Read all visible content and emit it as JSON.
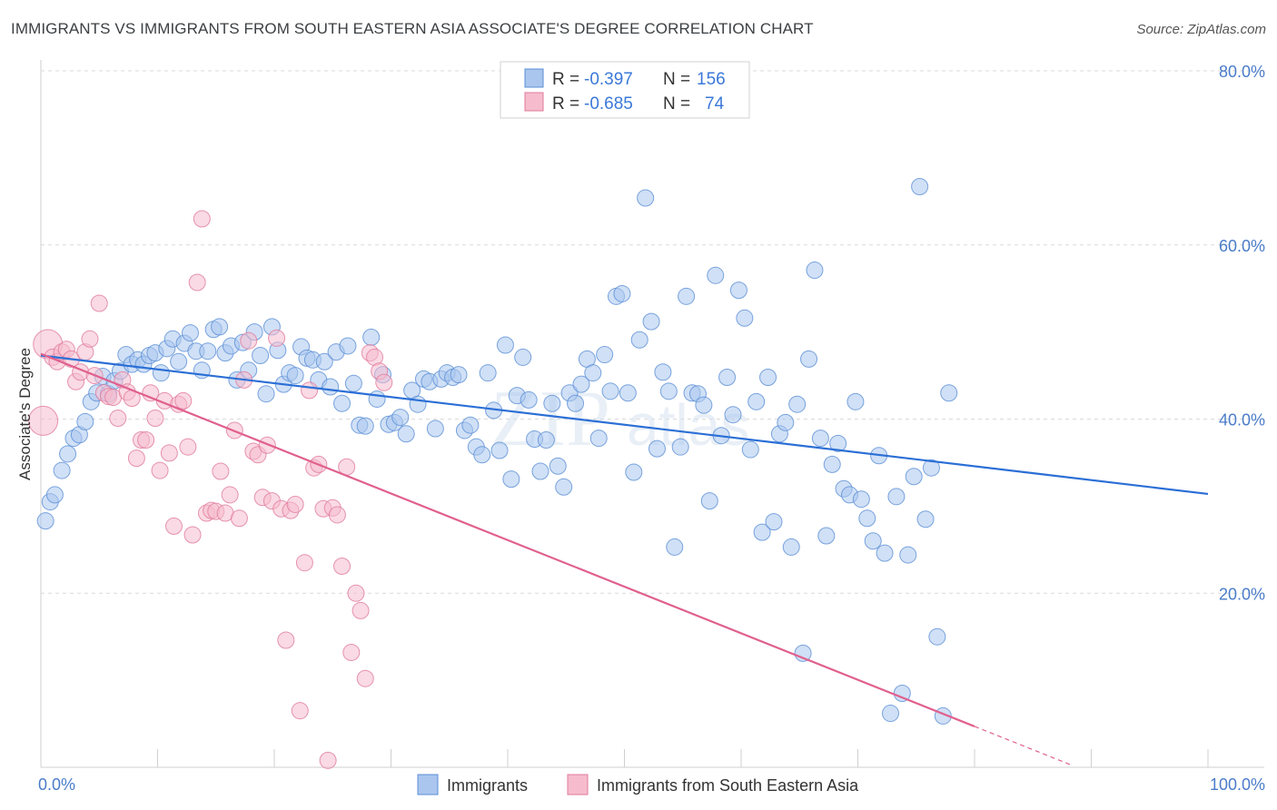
{
  "header": {
    "title": "IMMIGRANTS VS IMMIGRANTS FROM SOUTH EASTERN ASIA ASSOCIATE'S DEGREE CORRELATION CHART",
    "source": "Source: ZipAtlas.com"
  },
  "watermark": {
    "zip": "ZIP",
    "atlas": "atlas"
  },
  "legend": {
    "r_label": "R =",
    "n_label": "N =",
    "series": [
      {
        "r": "-0.397",
        "n": "156"
      },
      {
        "r": "-0.685",
        "n": "74"
      }
    ]
  },
  "colors": {
    "blue_fill": "#aac6ee",
    "blue_stroke": "#5b8fd6",
    "blue_line": "#2b6fd6",
    "pink_fill": "#f6bccd",
    "pink_stroke": "#e07a9c",
    "pink_line": "#e0608e",
    "grid": "#d9d9d9"
  },
  "chart_data": {
    "type": "scatter",
    "title": "IMMIGRANTS VS IMMIGRANTS FROM SOUTH EASTERN ASIA ASSOCIATE'S DEGREE CORRELATION CHART",
    "xlabel": "",
    "ylabel": "Associate's Degree",
    "xlim": [
      0,
      100
    ],
    "ylim": [
      0,
      80
    ],
    "x_tick_labels": [
      "0.0%",
      "100.0%"
    ],
    "y_ticks": [
      20,
      40,
      60,
      80
    ],
    "y_tick_labels": [
      "20.0%",
      "40.0%",
      "60.0%",
      "80.0%"
    ],
    "grid": true,
    "legend_position": "bottom",
    "series": [
      {
        "name": "Immigrants",
        "color": "blue",
        "trend": {
          "x": [
            0,
            100
          ],
          "y": [
            47.3,
            31.4
          ]
        },
        "points": [
          [
            0.4,
            28.3
          ],
          [
            0.8,
            30.5
          ],
          [
            1.2,
            31.3
          ],
          [
            1.8,
            34.1
          ],
          [
            2.3,
            36.0
          ],
          [
            2.8,
            37.8
          ],
          [
            3.3,
            38.2
          ],
          [
            3.8,
            39.7
          ],
          [
            4.3,
            42.0
          ],
          [
            4.8,
            43.0
          ],
          [
            5.3,
            44.9
          ],
          [
            5.8,
            42.9
          ],
          [
            6.3,
            44.4
          ],
          [
            6.8,
            45.5
          ],
          [
            7.3,
            47.4
          ],
          [
            7.8,
            46.3
          ],
          [
            8.3,
            46.8
          ],
          [
            8.8,
            46.3
          ],
          [
            9.3,
            47.3
          ],
          [
            9.8,
            47.6
          ],
          [
            10.3,
            45.3
          ],
          [
            10.8,
            48.1
          ],
          [
            11.3,
            49.2
          ],
          [
            11.8,
            46.6
          ],
          [
            12.3,
            48.7
          ],
          [
            12.8,
            49.9
          ],
          [
            13.3,
            47.8
          ],
          [
            13.8,
            45.6
          ],
          [
            14.3,
            47.8
          ],
          [
            14.8,
            50.3
          ],
          [
            15.3,
            50.6
          ],
          [
            15.8,
            47.6
          ],
          [
            16.3,
            48.4
          ],
          [
            16.8,
            44.5
          ],
          [
            17.3,
            48.8
          ],
          [
            17.8,
            45.6
          ],
          [
            18.3,
            50.0
          ],
          [
            18.8,
            47.3
          ],
          [
            19.3,
            42.9
          ],
          [
            19.8,
            50.6
          ],
          [
            20.3,
            47.9
          ],
          [
            20.8,
            44.0
          ],
          [
            21.3,
            45.3
          ],
          [
            21.8,
            45.0
          ],
          [
            22.3,
            48.3
          ],
          [
            22.8,
            47.0
          ],
          [
            23.3,
            46.8
          ],
          [
            23.8,
            44.5
          ],
          [
            24.3,
            46.6
          ],
          [
            24.8,
            43.7
          ],
          [
            25.3,
            47.7
          ],
          [
            25.8,
            41.8
          ],
          [
            26.3,
            48.4
          ],
          [
            26.8,
            44.1
          ],
          [
            27.3,
            39.3
          ],
          [
            27.8,
            39.2
          ],
          [
            28.3,
            49.4
          ],
          [
            28.8,
            42.3
          ],
          [
            29.3,
            45.1
          ],
          [
            29.8,
            39.4
          ],
          [
            30.3,
            39.6
          ],
          [
            30.8,
            40.2
          ],
          [
            31.3,
            38.3
          ],
          [
            31.8,
            43.3
          ],
          [
            32.3,
            41.7
          ],
          [
            32.8,
            44.6
          ],
          [
            33.3,
            44.3
          ],
          [
            33.8,
            38.9
          ],
          [
            34.3,
            44.6
          ],
          [
            34.8,
            45.3
          ],
          [
            35.3,
            44.8
          ],
          [
            35.8,
            45.1
          ],
          [
            36.3,
            38.7
          ],
          [
            36.8,
            39.3
          ],
          [
            37.3,
            36.8
          ],
          [
            37.8,
            35.9
          ],
          [
            38.3,
            45.3
          ],
          [
            38.8,
            41.0
          ],
          [
            39.3,
            36.4
          ],
          [
            39.8,
            48.5
          ],
          [
            40.3,
            33.1
          ],
          [
            40.8,
            42.7
          ],
          [
            41.3,
            47.1
          ],
          [
            41.8,
            42.2
          ],
          [
            42.3,
            37.7
          ],
          [
            42.8,
            34.0
          ],
          [
            43.3,
            37.6
          ],
          [
            43.8,
            41.8
          ],
          [
            44.3,
            34.6
          ],
          [
            44.8,
            32.2
          ],
          [
            45.3,
            43.0
          ],
          [
            45.8,
            41.8
          ],
          [
            46.3,
            44.0
          ],
          [
            46.8,
            46.9
          ],
          [
            47.3,
            45.3
          ],
          [
            47.8,
            37.8
          ],
          [
            48.3,
            47.4
          ],
          [
            48.8,
            43.2
          ],
          [
            49.3,
            54.1
          ],
          [
            49.8,
            54.4
          ],
          [
            50.3,
            43.0
          ],
          [
            50.8,
            33.9
          ],
          [
            51.3,
            49.1
          ],
          [
            51.8,
            65.4
          ],
          [
            52.3,
            51.2
          ],
          [
            52.8,
            36.6
          ],
          [
            53.3,
            45.4
          ],
          [
            53.8,
            43.2
          ],
          [
            54.3,
            25.3
          ],
          [
            54.8,
            36.8
          ],
          [
            55.3,
            54.1
          ],
          [
            55.8,
            43.0
          ],
          [
            56.3,
            42.9
          ],
          [
            56.8,
            41.6
          ],
          [
            57.3,
            30.6
          ],
          [
            57.8,
            56.5
          ],
          [
            58.3,
            38.1
          ],
          [
            58.8,
            44.8
          ],
          [
            59.3,
            40.5
          ],
          [
            59.8,
            54.8
          ],
          [
            60.3,
            51.6
          ],
          [
            60.8,
            36.5
          ],
          [
            61.3,
            42.0
          ],
          [
            61.8,
            27.0
          ],
          [
            62.3,
            44.8
          ],
          [
            62.8,
            28.2
          ],
          [
            63.3,
            38.3
          ],
          [
            63.8,
            39.6
          ],
          [
            64.3,
            25.3
          ],
          [
            64.8,
            41.7
          ],
          [
            65.3,
            13.1
          ],
          [
            65.8,
            46.9
          ],
          [
            66.3,
            57.1
          ],
          [
            66.8,
            37.8
          ],
          [
            67.3,
            26.6
          ],
          [
            67.8,
            34.8
          ],
          [
            68.3,
            37.2
          ],
          [
            68.8,
            32.0
          ],
          [
            69.3,
            31.3
          ],
          [
            69.8,
            42.0
          ],
          [
            70.3,
            30.8
          ],
          [
            70.8,
            28.6
          ],
          [
            71.3,
            26.0
          ],
          [
            71.8,
            35.8
          ],
          [
            72.3,
            24.6
          ],
          [
            72.8,
            6.2
          ],
          [
            73.3,
            31.1
          ],
          [
            73.8,
            8.5
          ],
          [
            74.3,
            24.4
          ],
          [
            74.8,
            33.4
          ],
          [
            75.3,
            66.7
          ],
          [
            75.8,
            28.5
          ],
          [
            76.3,
            34.4
          ],
          [
            76.8,
            15.0
          ],
          [
            77.3,
            5.9
          ],
          [
            77.8,
            43.0
          ]
        ]
      },
      {
        "name": "Immigrants from South Eastern Asia",
        "color": "pink",
        "trend": {
          "x": [
            0,
            80
          ],
          "y": [
            47.5,
            4.7
          ]
        },
        "trend_dashed": {
          "x": [
            80,
            100
          ],
          "y": [
            4.7,
            -6.0
          ]
        },
        "points": [
          [
            0.2,
            39.8
          ],
          [
            0.6,
            48.6
          ],
          [
            1.0,
            47.1
          ],
          [
            1.4,
            46.6
          ],
          [
            1.8,
            47.7
          ],
          [
            2.2,
            48.0
          ],
          [
            2.6,
            46.9
          ],
          [
            3.0,
            44.3
          ],
          [
            3.4,
            45.4
          ],
          [
            3.8,
            47.7
          ],
          [
            4.2,
            49.2
          ],
          [
            4.6,
            45.0
          ],
          [
            5.0,
            53.3
          ],
          [
            5.4,
            43.0
          ],
          [
            5.8,
            42.6
          ],
          [
            6.2,
            42.5
          ],
          [
            6.6,
            40.1
          ],
          [
            7.0,
            44.5
          ],
          [
            7.4,
            43.1
          ],
          [
            7.8,
            42.4
          ],
          [
            8.2,
            35.5
          ],
          [
            8.6,
            37.6
          ],
          [
            9.0,
            37.6
          ],
          [
            9.4,
            43.0
          ],
          [
            9.8,
            40.1
          ],
          [
            10.2,
            34.1
          ],
          [
            10.6,
            42.1
          ],
          [
            11.0,
            36.1
          ],
          [
            11.4,
            27.7
          ],
          [
            11.8,
            41.7
          ],
          [
            12.2,
            42.1
          ],
          [
            12.6,
            36.8
          ],
          [
            13.0,
            26.7
          ],
          [
            13.4,
            55.7
          ],
          [
            13.8,
            63.0
          ],
          [
            14.2,
            29.2
          ],
          [
            14.6,
            29.5
          ],
          [
            15.0,
            29.4
          ],
          [
            15.4,
            34.0
          ],
          [
            15.8,
            29.2
          ],
          [
            16.2,
            31.3
          ],
          [
            16.6,
            38.7
          ],
          [
            17.0,
            28.6
          ],
          [
            17.4,
            44.5
          ],
          [
            17.8,
            49.0
          ],
          [
            18.2,
            36.3
          ],
          [
            18.6,
            35.9
          ],
          [
            19.0,
            31.0
          ],
          [
            19.4,
            37.0
          ],
          [
            19.8,
            30.6
          ],
          [
            20.2,
            49.3
          ],
          [
            20.6,
            29.7
          ],
          [
            21.0,
            14.6
          ],
          [
            21.4,
            29.5
          ],
          [
            21.8,
            30.2
          ],
          [
            22.2,
            6.5
          ],
          [
            22.6,
            23.5
          ],
          [
            23.0,
            43.3
          ],
          [
            23.4,
            34.4
          ],
          [
            23.8,
            34.8
          ],
          [
            24.2,
            29.7
          ],
          [
            24.6,
            0.8
          ],
          [
            25.0,
            29.8
          ],
          [
            25.4,
            29.0
          ],
          [
            25.8,
            23.1
          ],
          [
            26.2,
            34.5
          ],
          [
            26.6,
            13.2
          ],
          [
            27.0,
            20.0
          ],
          [
            27.4,
            18.0
          ],
          [
            27.8,
            10.2
          ],
          [
            28.2,
            47.6
          ],
          [
            28.6,
            47.1
          ],
          [
            29.0,
            45.5
          ],
          [
            29.4,
            44.2
          ]
        ]
      }
    ]
  },
  "bottom_legend": {
    "items": [
      {
        "label": "Immigrants"
      },
      {
        "label": "Immigrants from South Eastern Asia"
      }
    ]
  }
}
